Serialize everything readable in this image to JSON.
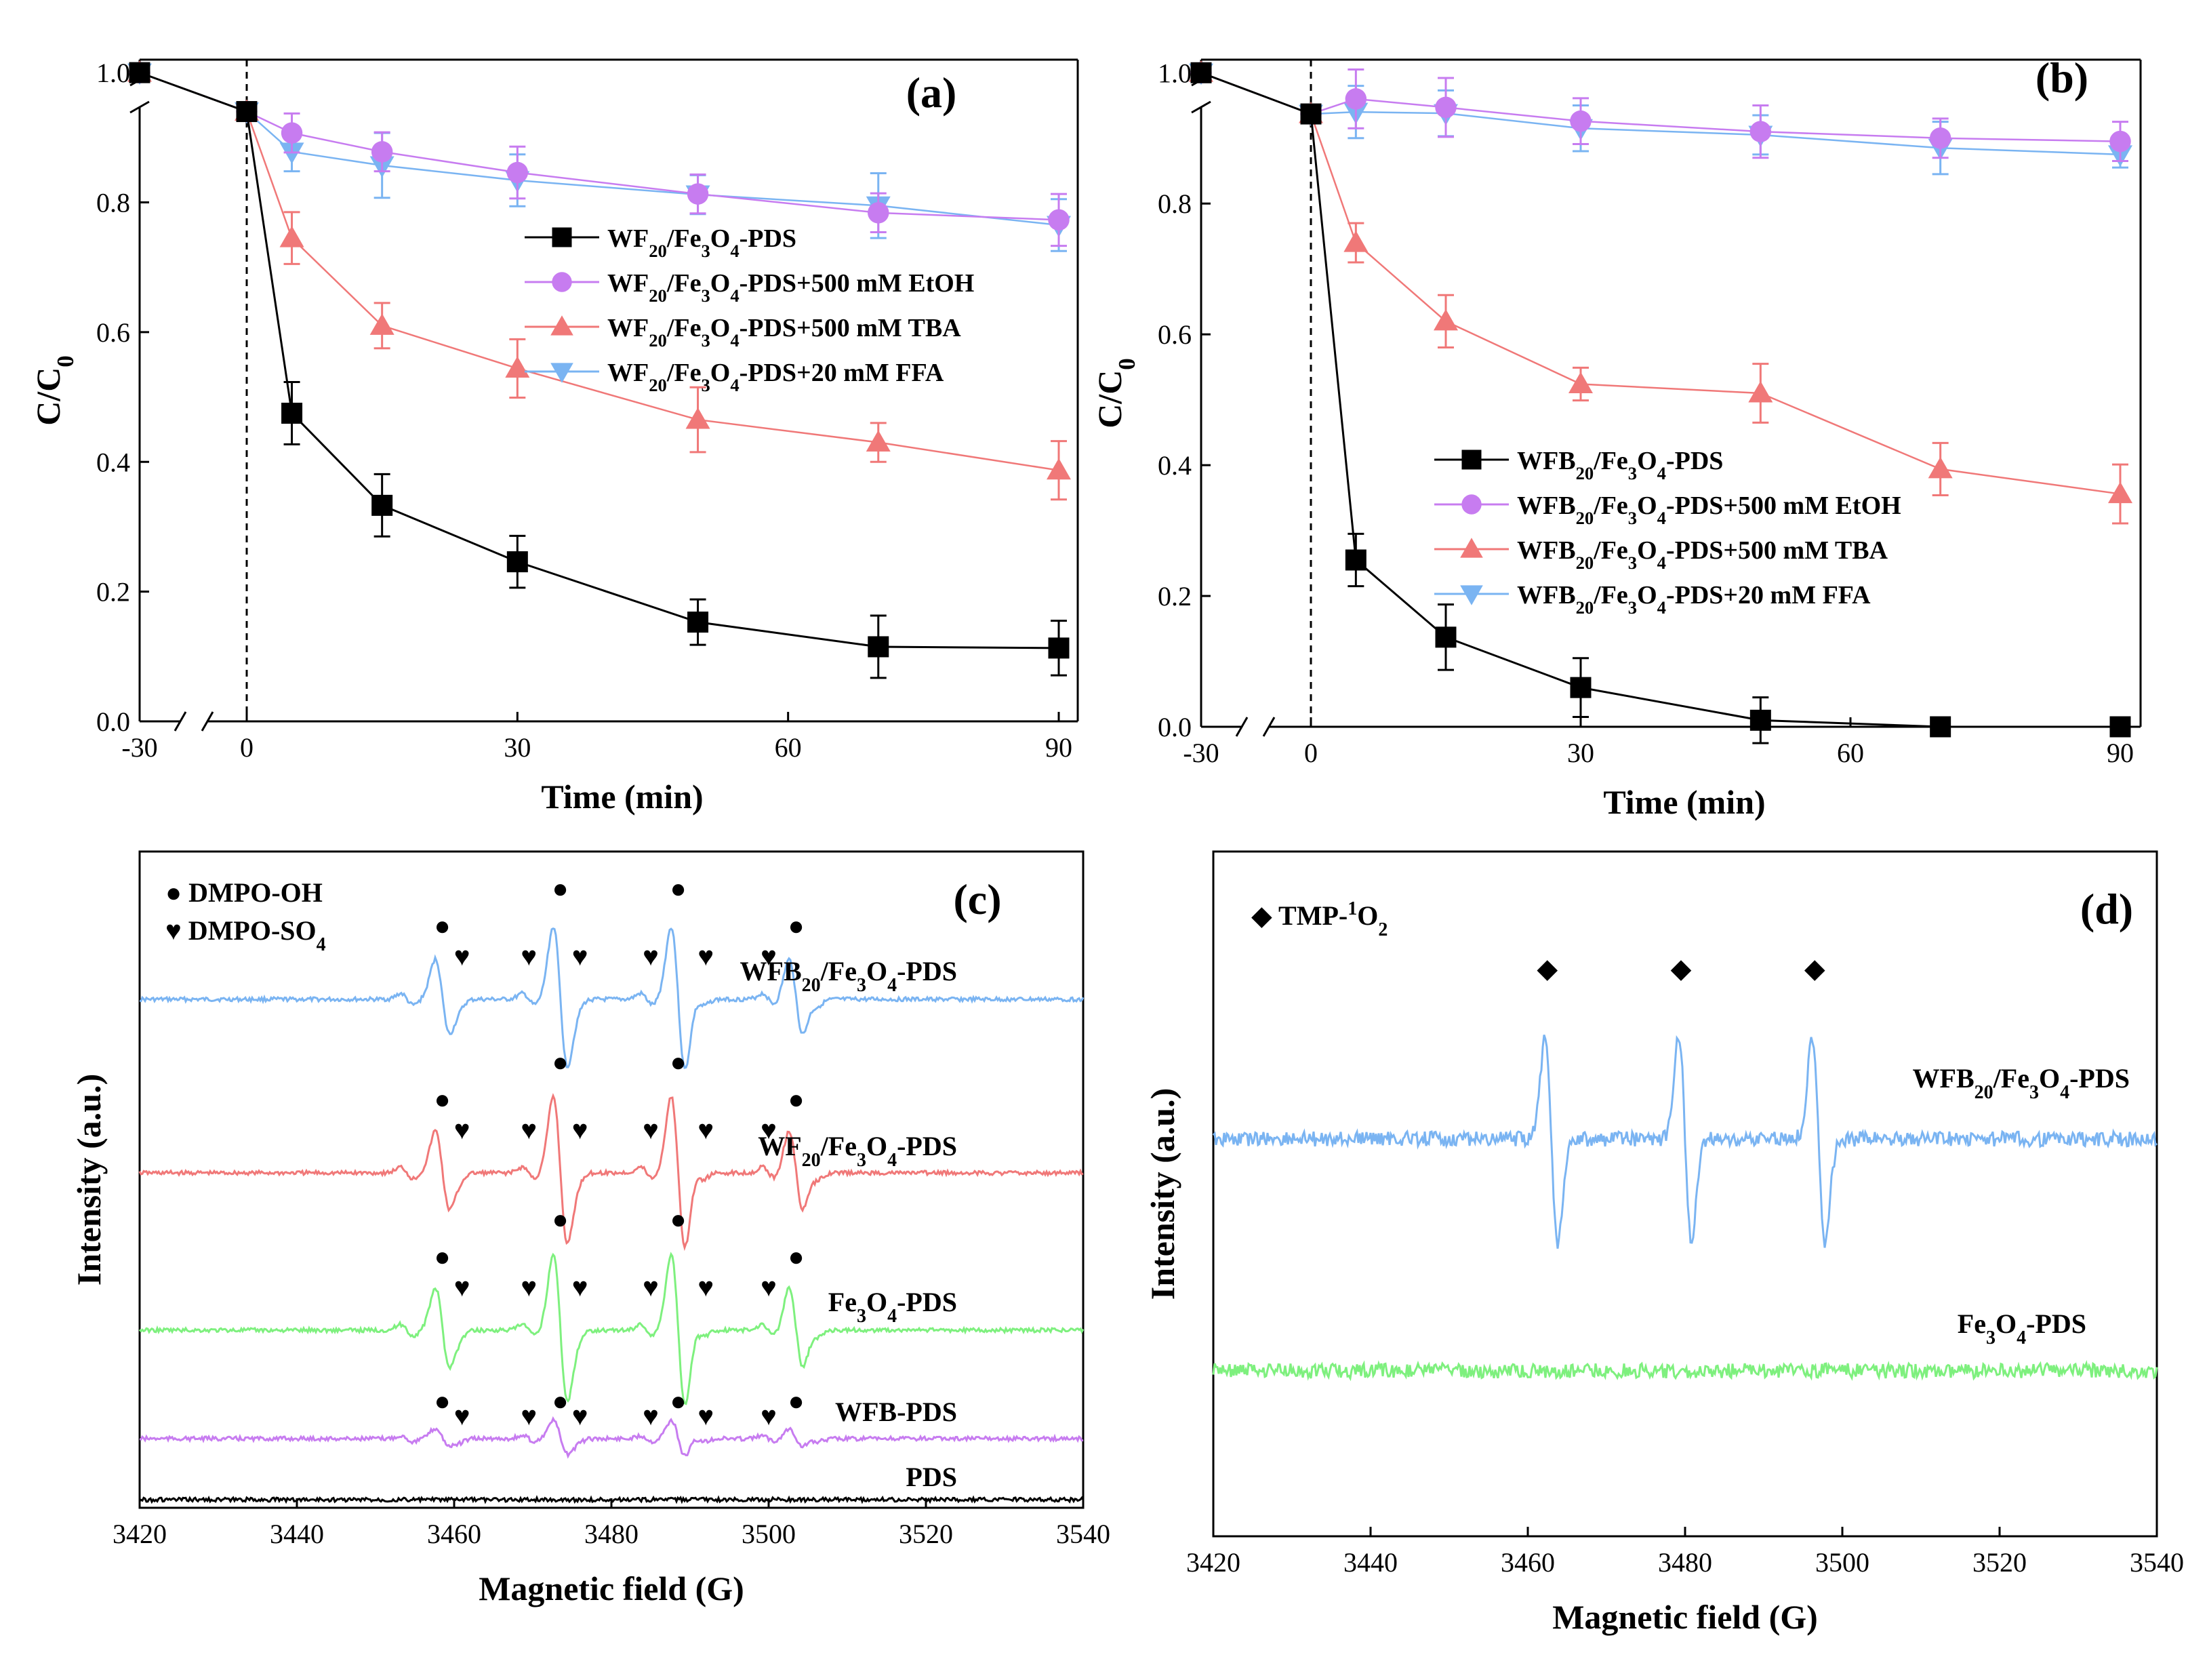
{
  "colors": {
    "black": "#000000",
    "purple": "#c77cf0",
    "red": "#f07878",
    "blue": "#7ab4f2",
    "green": "#7ef07e",
    "purple_ebar": "#c080e8",
    "red_ebar": "#e86a6a",
    "blue_ebar": "#70aef0"
  },
  "chart_data": [
    {
      "panel": "(a)",
      "type": "line",
      "xlabel": "Time (min)",
      "ylabel": "C/C0",
      "xlim": [
        -30,
        90
      ],
      "ylim": [
        0,
        1.0
      ],
      "x": [
        -30,
        0,
        5,
        15,
        30,
        50,
        70,
        90
      ],
      "xticks": [
        -30,
        0,
        30,
        60,
        90
      ],
      "yticks": [
        "0.0",
        "0.2",
        "0.4",
        "0.6",
        "0.8",
        "1.0"
      ],
      "legend_position": "center-right",
      "series": [
        {
          "name": "WF20/Fe3O4-PDS",
          "base": "WF",
          "sub": "20",
          "suffix": "",
          "color": "#000000",
          "marker": "square",
          "values": [
            1.0,
            0.94,
            0.475,
            0.333,
            0.246,
            0.153,
            0.115,
            0.113
          ],
          "errors": [
            0,
            0.01,
            0.048,
            0.048,
            0.04,
            0.035,
            0.048,
            0.042
          ]
        },
        {
          "name": "WF20/Fe3O4-PDS+500 mM EtOH",
          "base": "WF",
          "sub": "20",
          "suffix": "+500 mM EtOH",
          "color": "#c77cf0",
          "marker": "circle",
          "values": [
            1.0,
            0.94,
            0.907,
            0.878,
            0.846,
            0.813,
            0.784,
            0.773
          ],
          "errors": [
            0,
            0.01,
            0.03,
            0.03,
            0.04,
            0.03,
            0.03,
            0.04
          ]
        },
        {
          "name": "WF20/Fe3O4-PDS+500 mM TBA",
          "base": "WF",
          "sub": "20",
          "suffix": "+500 mM TBA",
          "color": "#f07878",
          "marker": "triangle-up",
          "values": [
            1.0,
            0.94,
            0.745,
            0.61,
            0.544,
            0.465,
            0.43,
            0.387
          ],
          "errors": [
            0,
            0.01,
            0.04,
            0.035,
            0.045,
            0.05,
            0.03,
            0.045
          ]
        },
        {
          "name": "WF20/Fe3O4-PDS+20 mM FFA",
          "base": "WF",
          "sub": "20",
          "suffix": "+20 mM FFA",
          "color": "#7ab4f2",
          "marker": "triangle-down",
          "values": [
            1.0,
            0.94,
            0.878,
            0.857,
            0.834,
            0.812,
            0.795,
            0.765
          ],
          "errors": [
            0,
            0.01,
            0.03,
            0.05,
            0.04,
            0.03,
            0.05,
            0.04
          ]
        }
      ]
    },
    {
      "panel": "(b)",
      "type": "line",
      "xlabel": "Time (min)",
      "ylabel": "C/C0",
      "xlim": [
        -30,
        90
      ],
      "ylim": [
        0,
        1.0
      ],
      "x": [
        -30,
        0,
        5,
        15,
        30,
        50,
        70,
        90
      ],
      "xticks": [
        -30,
        0,
        30,
        60,
        90
      ],
      "yticks": [
        "0.0",
        "0.2",
        "0.4",
        "0.6",
        "0.8",
        "1.0"
      ],
      "legend_position": "center-right",
      "series": [
        {
          "name": "WFB20/Fe3O4-PDS",
          "base": "WFB",
          "sub": "20",
          "suffix": "",
          "color": "#000000",
          "marker": "square",
          "values": [
            1.0,
            0.937,
            0.255,
            0.137,
            0.06,
            0.01,
            0.0,
            0.0
          ],
          "errors": [
            0,
            0.01,
            0.04,
            0.05,
            0.045,
            0.035,
            0.01,
            0.0
          ]
        },
        {
          "name": "WFB20/Fe3O4-PDS+500 mM EtOH",
          "base": "WFB",
          "sub": "20",
          "suffix": "+500 mM EtOH",
          "color": "#c77cf0",
          "marker": "circle",
          "values": [
            1.0,
            0.937,
            0.96,
            0.947,
            0.926,
            0.91,
            0.9,
            0.895
          ],
          "errors": [
            0,
            0.01,
            0.045,
            0.045,
            0.035,
            0.04,
            0.03,
            0.03
          ]
        },
        {
          "name": "WFB20/Fe3O4-PDS+500 mM TBA",
          "base": "WFB",
          "sub": "20",
          "suffix": "+500 mM TBA",
          "color": "#f07878",
          "marker": "triangle-up",
          "values": [
            1.0,
            0.937,
            0.74,
            0.62,
            0.524,
            0.51,
            0.394,
            0.356
          ],
          "errors": [
            0,
            0.01,
            0.03,
            0.04,
            0.025,
            0.045,
            0.04,
            0.045
          ]
        },
        {
          "name": "WFB20/Fe3O4-PDS+20 mM FFA",
          "base": "WFB",
          "sub": "20",
          "suffix": "+20 mM FFA",
          "color": "#7ab4f2",
          "marker": "triangle-down",
          "values": [
            1.0,
            0.937,
            0.94,
            0.938,
            0.915,
            0.905,
            0.885,
            0.875
          ],
          "errors": [
            0,
            0.01,
            0.04,
            0.035,
            0.035,
            0.03,
            0.04,
            0.02
          ]
        }
      ]
    },
    {
      "panel": "(c)",
      "type": "line",
      "xlabel": "Magnetic field (G)",
      "ylabel": "Intensity (a.u.)",
      "xlim": [
        3420,
        3540
      ],
      "xticks": [
        3420,
        3440,
        3460,
        3480,
        3500,
        3520,
        3540
      ],
      "legend": [
        {
          "symbol": "●",
          "text": "DMPO-OH"
        },
        {
          "symbol": "♥",
          "text": "DMPO-SO",
          "sub": "4"
        }
      ],
      "oh_peaks_G": [
        3458.5,
        3473.5,
        3488.5,
        3503.5
      ],
      "so4_peaks_G": [
        3454,
        3460,
        3469.5,
        3475,
        3484.5,
        3491,
        3500,
        3505.5
      ],
      "spectra": [
        {
          "label": "WFB20/Fe3O4-PDS",
          "parts": [
            "WFB",
            "20",
            "/Fe",
            "3",
            "O",
            "4",
            "-PDS"
          ],
          "color": "#7ab4f2",
          "oh_intensity": 1.0,
          "so4_intensity": 0.2
        },
        {
          "label": "WF20/Fe3O4-PDS",
          "parts": [
            "WF",
            "20",
            "/Fe",
            "3",
            "O",
            "4",
            "-PDS"
          ],
          "color": "#f07878",
          "oh_intensity": 1.05,
          "so4_intensity": 0.2
        },
        {
          "label": "Fe3O4-PDS",
          "parts": [
            "Fe",
            "3",
            "O",
            "4",
            "-PDS"
          ],
          "color": "#7ef07e",
          "oh_intensity": 1.05,
          "so4_intensity": 0.2
        },
        {
          "label": "WFB-PDS",
          "parts": [
            "WFB-PDS"
          ],
          "color": "#c77cf0",
          "oh_intensity": 0.25,
          "so4_intensity": 0.1
        },
        {
          "label": "PDS",
          "parts": [
            "PDS"
          ],
          "color": "#000000",
          "oh_intensity": 0.0,
          "so4_intensity": 0.0
        }
      ]
    },
    {
      "panel": "(d)",
      "type": "line",
      "xlabel": "Magnetic field (G)",
      "ylabel": "Intensity (a.u.)",
      "xlim": [
        3420,
        3540
      ],
      "xticks": [
        3420,
        3440,
        3460,
        3480,
        3500,
        3520,
        3540
      ],
      "legend": [
        {
          "symbol": "◆",
          "text": "TMP-",
          "sup": "1",
          "rest": "O",
          "sub": "2"
        }
      ],
      "tmp_peaks_G": [
        3463,
        3480,
        3497
      ],
      "spectra": [
        {
          "label": "WFB20/Fe3O4-PDS",
          "parts": [
            "WFB",
            "20",
            "/Fe",
            "3",
            "O",
            "4",
            "-PDS"
          ],
          "color": "#7ab4f2",
          "intensity": 1.0
        },
        {
          "label": "Fe3O4-PDS",
          "parts": [
            "Fe",
            "3",
            "O",
            "4",
            "-PDS"
          ],
          "color": "#7ef07e",
          "intensity": 0.0
        }
      ]
    }
  ]
}
